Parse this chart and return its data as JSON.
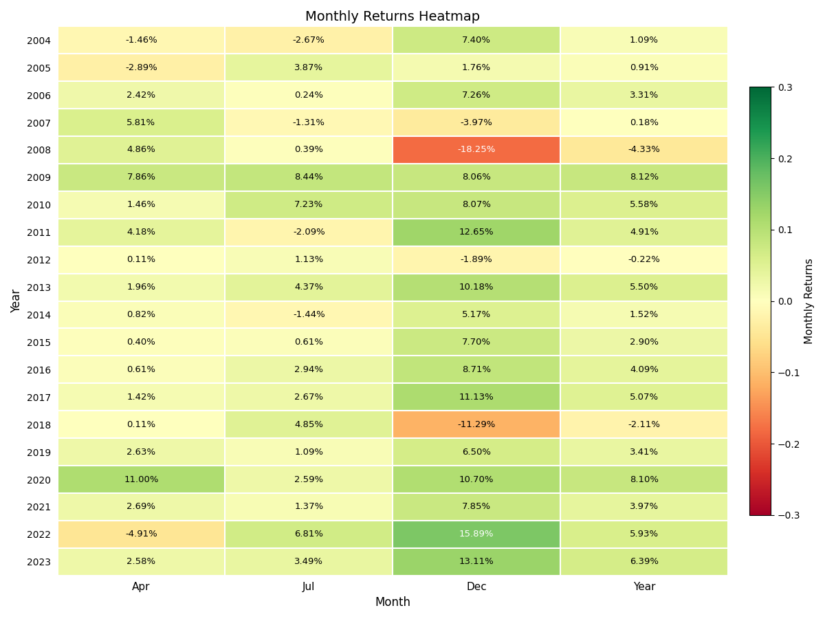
{
  "title": "Monthly Returns Heatmap",
  "xlabel": "Month",
  "ylabel": "Year",
  "colorbar_label": "Monthly Returns",
  "columns": [
    "Apr",
    "Jul",
    "Dec",
    "Year"
  ],
  "years": [
    2004,
    2005,
    2006,
    2007,
    2008,
    2009,
    2010,
    2011,
    2012,
    2013,
    2014,
    2015,
    2016,
    2017,
    2018,
    2019,
    2020,
    2021,
    2022,
    2023
  ],
  "values": [
    [
      -1.46,
      -2.67,
      7.4,
      1.09
    ],
    [
      -2.89,
      3.87,
      1.76,
      0.91
    ],
    [
      2.42,
      0.24,
      7.26,
      3.31
    ],
    [
      5.81,
      -1.31,
      -3.97,
      0.18
    ],
    [
      4.86,
      0.39,
      -18.25,
      -4.33
    ],
    [
      7.86,
      8.44,
      8.06,
      8.12
    ],
    [
      1.46,
      7.23,
      8.07,
      5.58
    ],
    [
      4.18,
      -2.09,
      12.65,
      4.91
    ],
    [
      0.11,
      1.13,
      -1.89,
      -0.22
    ],
    [
      1.96,
      4.37,
      10.18,
      5.5
    ],
    [
      0.82,
      -1.44,
      5.17,
      1.52
    ],
    [
      0.4,
      0.61,
      7.7,
      2.9
    ],
    [
      0.61,
      2.94,
      8.71,
      4.09
    ],
    [
      1.42,
      2.67,
      11.13,
      5.07
    ],
    [
      0.11,
      4.85,
      -11.29,
      -2.11
    ],
    [
      2.63,
      1.09,
      6.5,
      3.41
    ],
    [
      11.0,
      2.59,
      10.7,
      8.1
    ],
    [
      2.69,
      1.37,
      7.85,
      3.97
    ],
    [
      -4.91,
      6.81,
      15.89,
      5.93
    ],
    [
      2.58,
      3.49,
      13.11,
      6.39
    ]
  ],
  "vmin": -0.3,
  "vmax": 0.3,
  "cmap": "RdYlGn",
  "figsize": [
    12,
    9
  ],
  "dpi": 100
}
